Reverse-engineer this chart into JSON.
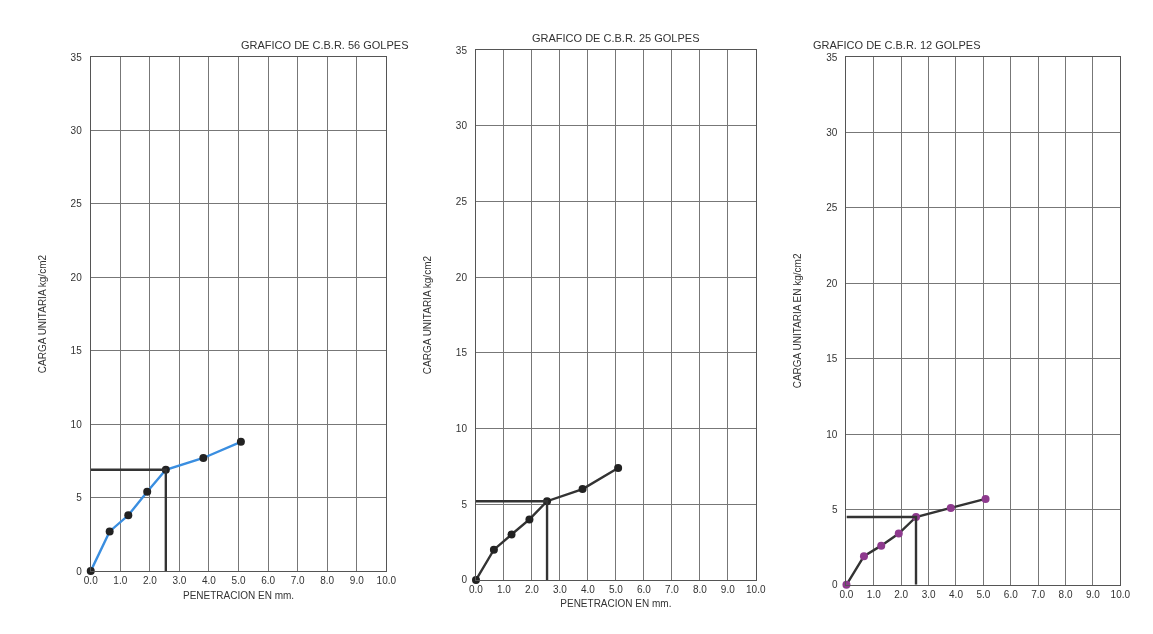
{
  "chart_data": [
    {
      "type": "line",
      "title": "GRAFICO DE C.B.R. 56 GOLPES",
      "xlabel": "PENETRACION EN mm.",
      "ylabel": "CARGA UNITARIA kg/cm2",
      "xlim": [
        0,
        10
      ],
      "ylim": [
        0,
        35
      ],
      "xticks": [
        {
          "value": 0,
          "label": "0.0"
        },
        {
          "value": 1,
          "label": "1.0"
        },
        {
          "value": 2,
          "label": "2.0"
        },
        {
          "value": 3,
          "label": "3.0"
        },
        {
          "value": 4,
          "label": "4.0"
        },
        {
          "value": 5,
          "label": "5.0"
        },
        {
          "value": 6,
          "label": "6.0"
        },
        {
          "value": 7,
          "label": "7.0"
        },
        {
          "value": 8,
          "label": "8.0"
        },
        {
          "value": 9,
          "label": "9.0"
        },
        {
          "value": 10,
          "label": "10.0"
        }
      ],
      "yticks": [
        0,
        5,
        10,
        15,
        20,
        25,
        30,
        35
      ],
      "grid": true,
      "marker": "circle",
      "series": [
        {
          "color": "#3a8ee0",
          "colors": [
            "#222222",
            "#222222",
            "#222222",
            "#222222",
            "#222222",
            "#222222",
            "#222222"
          ],
          "x": [
            0,
            0.64,
            1.27,
            1.91,
            2.54,
            3.81,
            5.08
          ],
          "values": [
            0,
            2.7,
            3.8,
            5.4,
            6.9,
            7.7,
            8.8
          ]
        },
        {
          "type": "line",
          "marker": "none",
          "color": "#333333",
          "x": [
            0,
            2.54,
            2.54
          ],
          "values": [
            6.9,
            6.9,
            0
          ]
        }
      ]
    },
    {
      "type": "line",
      "title": "GRAFICO DE C.B.R. 25 GOLPES",
      "xlabel": "PENETRACION EN mm.",
      "ylabel": "CARGA UNITARIA kg/cm2",
      "xlim": [
        0,
        10
      ],
      "ylim": [
        0,
        35
      ],
      "xticks": [
        {
          "value": 0,
          "label": "0.0"
        },
        {
          "value": 1,
          "label": "1.0"
        },
        {
          "value": 2,
          "label": "2.0"
        },
        {
          "value": 3,
          "label": "3.0"
        },
        {
          "value": 4,
          "label": "4.0"
        },
        {
          "value": 5,
          "label": "5.0"
        },
        {
          "value": 6,
          "label": "6.0"
        },
        {
          "value": 7,
          "label": "7.0"
        },
        {
          "value": 8,
          "label": "8.0"
        },
        {
          "value": 9,
          "label": "9.0"
        },
        {
          "value": 10,
          "label": "10.0"
        }
      ],
      "yticks": [
        0,
        5,
        10,
        15,
        20,
        25,
        30,
        35
      ],
      "grid": true,
      "marker": "circle",
      "series": [
        {
          "color": "#333333",
          "colors": [
            "#222222",
            "#222222",
            "#222222",
            "#222222",
            "#222222",
            "#222222",
            "#222222"
          ],
          "x": [
            0,
            0.64,
            1.27,
            1.91,
            2.54,
            3.81,
            5.08
          ],
          "values": [
            0,
            2.0,
            3.0,
            4.0,
            5.2,
            6.0,
            7.4
          ]
        },
        {
          "type": "line",
          "marker": "none",
          "color": "#333333",
          "x": [
            0,
            2.54,
            2.54
          ],
          "values": [
            5.2,
            5.2,
            0
          ]
        }
      ]
    },
    {
      "type": "line",
      "title": "GRAFICO DE C.B.R. 12 GOLPES",
      "ylabel": "CARGA UNITARIA EN kg/cm2",
      "xlim": [
        0,
        10
      ],
      "ylim": [
        0,
        35
      ],
      "xticks": [
        {
          "value": 0,
          "label": "0.0"
        },
        {
          "value": 1,
          "label": "1.0"
        },
        {
          "value": 2,
          "label": "2.0"
        },
        {
          "value": 3,
          "label": "3.0"
        },
        {
          "value": 4,
          "label": "4.0"
        },
        {
          "value": 5,
          "label": "5.0"
        },
        {
          "value": 6,
          "label": "6.0"
        },
        {
          "value": 7,
          "label": "7.0"
        },
        {
          "value": 8,
          "label": "8.0"
        },
        {
          "value": 9,
          "label": "9.0"
        },
        {
          "value": 10,
          "label": "10.0"
        }
      ],
      "yticks": [
        0,
        5,
        10,
        15,
        20,
        25,
        30,
        35
      ],
      "grid": true,
      "marker": "circle",
      "series": [
        {
          "color": "#333333",
          "colors": [
            "#8e3a8e",
            "#8e3a8e",
            "#8e3a8e",
            "#8e3a8e",
            "#8e3a8e",
            "#8e3a8e",
            "#8e3a8e"
          ],
          "x": [
            0,
            0.64,
            1.27,
            1.91,
            2.54,
            3.81,
            5.08
          ],
          "values": [
            0,
            1.9,
            2.6,
            3.4,
            4.5,
            5.1,
            5.7
          ]
        },
        {
          "type": "line",
          "marker": "none",
          "color": "#333333",
          "x": [
            0,
            2.54,
            2.54
          ],
          "values": [
            4.5,
            4.5,
            0
          ]
        }
      ]
    }
  ]
}
